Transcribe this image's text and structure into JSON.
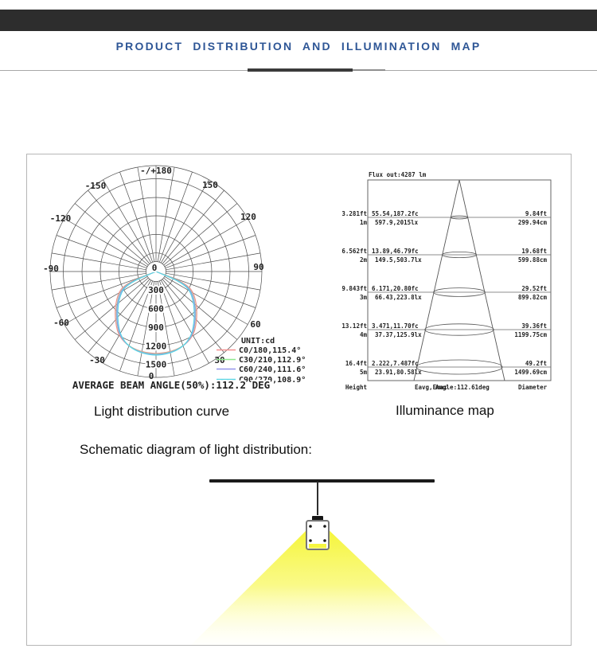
{
  "header": {
    "title": "PRODUCT DISTRIBUTION AND ILLUMINATION MAP",
    "title_color": "#2e5696",
    "bar_color": "#2d2d2d"
  },
  "captions": {
    "polar": "Light distribution curve",
    "illuminance": "Illuminance map",
    "schematic": "Schematic diagram of light distribution:"
  },
  "colors": {
    "beam_yellow": "#f5f52e",
    "accent_blue": "#2e5696"
  },
  "chart_data": [
    {
      "type": "polar_light_distribution",
      "title": "Light distribution curve",
      "unit_label": "UNIT:cd",
      "top_label": "-/+180",
      "angle_labels": {
        "m150": "-150",
        "p150": "150",
        "m120": "-120",
        "p120": "120",
        "m90": "-90",
        "p90": "90",
        "m60": "-60",
        "p60": "60",
        "m30": "-30",
        "p30": "30",
        "zero": "0"
      },
      "radial_labels": [
        "0",
        "300",
        "600",
        "900",
        "1200",
        "1500"
      ],
      "radial_range_cd": [
        0,
        1500
      ],
      "grid": {
        "angle_step_deg": 10,
        "ring_step_cd": 300
      },
      "peak_intensity_cd": 1300,
      "footer": "AVERAGE BEAM ANGLE(50%):112.2 DEG",
      "average_beam_angle_deg": 112.2,
      "series": [
        {
          "label": "C0/180,115.4°",
          "plane": "C0/180",
          "beam_angle_deg": 115.4,
          "color": "#f29090"
        },
        {
          "label": "C30/210,112.9°",
          "plane": "C30/210",
          "beam_angle_deg": 112.9,
          "color": "#8de88d"
        },
        {
          "label": "C60/240,111.6°",
          "plane": "C60/240",
          "beam_angle_deg": 111.6,
          "color": "#9494ec"
        },
        {
          "label": "C90/270,108.9°",
          "plane": "C90/270",
          "beam_angle_deg": 108.9,
          "color": "#5cd6e4"
        }
      ]
    },
    {
      "type": "illuminance_cone",
      "title": "Illuminance map",
      "flux_label": "Flux out:4287 lm",
      "beam_angle_label": "Angle:112.61deg",
      "rows": [
        {
          "height_ft": "3.281ft",
          "height_m": "1m",
          "fc": "55.54,187.2fc",
          "lx": "597.9,2015lx",
          "dia_ft": "9.84ft",
          "dia_cm": "299.94cm"
        },
        {
          "height_ft": "6.562ft",
          "height_m": "2m",
          "fc": "13.89,46.79fc",
          "lx": "149.5,503.7lx",
          "dia_ft": "19.68ft",
          "dia_cm": "599.88cm"
        },
        {
          "height_ft": "9.843ft",
          "height_m": "3m",
          "fc": "6.171,20.80fc",
          "lx": "66.43,223.8lx",
          "dia_ft": "29.52ft",
          "dia_cm": "899.82cm"
        },
        {
          "height_ft": "13.12ft",
          "height_m": "4m",
          "fc": "3.471,11.70fc",
          "lx": "37.37,125.9lx",
          "dia_ft": "39.36ft",
          "dia_cm": "1199.75cm"
        },
        {
          "height_ft": "16.4ft",
          "height_m": "5m",
          "fc": "2.222,7.487fc",
          "lx": "23.91,80.58lx",
          "dia_ft": "49.2ft",
          "dia_cm": "1499.69cm"
        }
      ],
      "footer": {
        "height": "Height",
        "eavg": "Eavg,Emax",
        "angle": "Angle:112.61deg",
        "diameter": "Diameter"
      }
    }
  ]
}
